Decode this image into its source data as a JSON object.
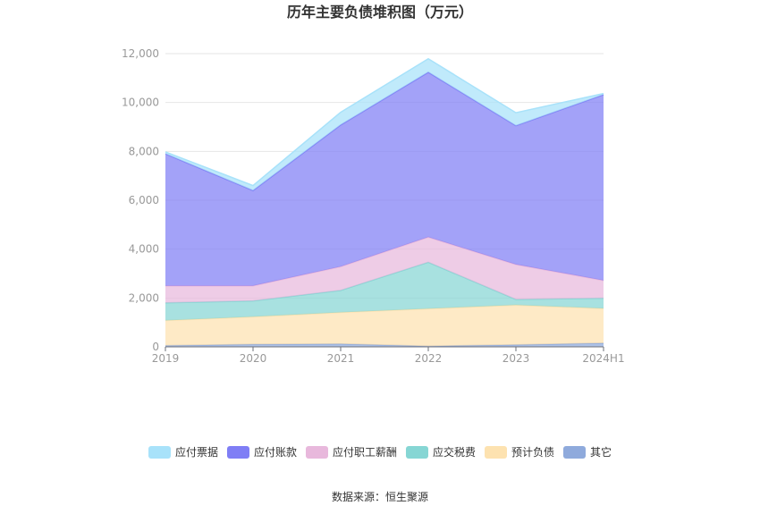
{
  "chart_data": {
    "type": "area",
    "stacked": true,
    "title": "历年主要负债堆积图（万元）",
    "categories": [
      "2019",
      "2020",
      "2021",
      "2022",
      "2023",
      "2024H1"
    ],
    "y_ticks": [
      "0",
      "2,000",
      "4,000",
      "6,000",
      "8,000",
      "10,000",
      "12,000"
    ],
    "ylim": [
      0,
      12000
    ],
    "grid": true,
    "legend_position": "bottom",
    "series": [
      {
        "name": "其它",
        "color": "#8faadc",
        "values": [
          50,
          100,
          120,
          30,
          80,
          150
        ]
      },
      {
        "name": "预计负债",
        "color": "#fde2b0",
        "values": [
          1030,
          1130,
          1290,
          1530,
          1630,
          1420
        ]
      },
      {
        "name": "应交税费",
        "color": "#86d6d4",
        "values": [
          720,
          650,
          900,
          1900,
          230,
          420
        ]
      },
      {
        "name": "应付职工薪酬",
        "color": "#e8b8dc",
        "values": [
          700,
          620,
          970,
          1030,
          1430,
          730
        ]
      },
      {
        "name": "应付账款",
        "color": "#7f7ef5",
        "values": [
          5400,
          3900,
          5800,
          6750,
          5680,
          7600
        ]
      },
      {
        "name": "应付票据",
        "color": "#a8e2fa",
        "values": [
          80,
          200,
          520,
          550,
          530,
          50
        ]
      }
    ],
    "legend_order": [
      "应付票据",
      "应付账款",
      "应付职工薪酬",
      "应交税费",
      "预计负债",
      "其它"
    ]
  },
  "footer": {
    "source": "数据来源：恒生聚源"
  }
}
